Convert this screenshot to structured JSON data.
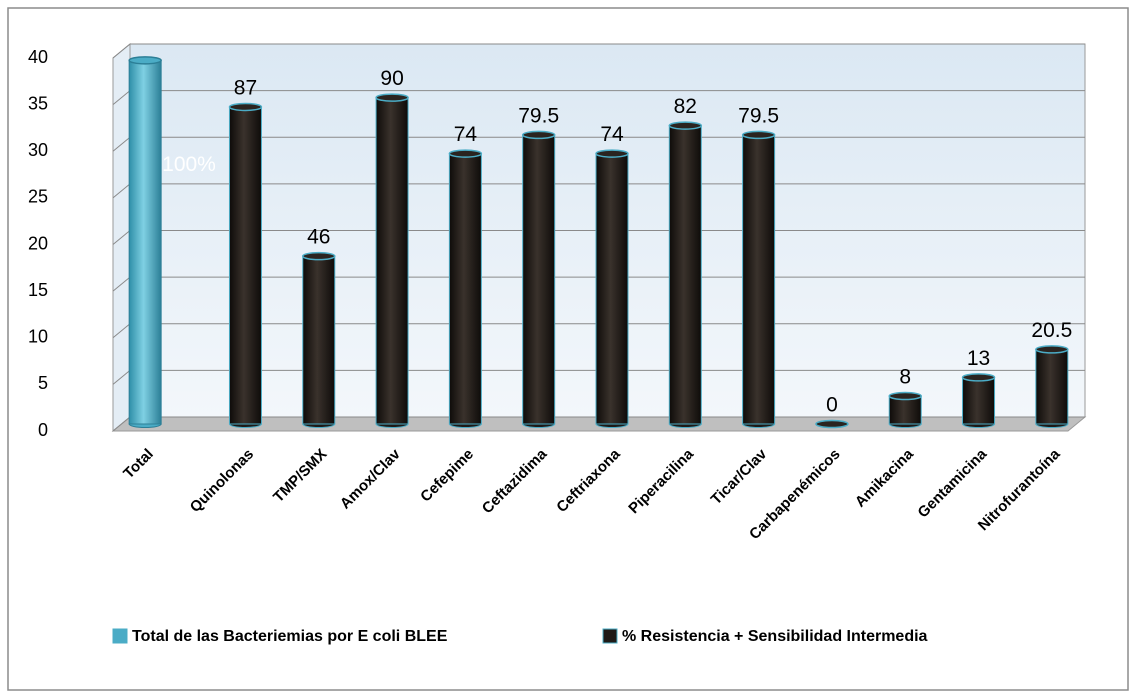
{
  "chart_data": {
    "type": "bar",
    "categories": [
      "Total",
      "Quinolonas",
      "TMP/SMX",
      "Amox/Clav",
      "Cefepime",
      "Ceftazidima",
      "Ceftriaxona",
      "Piperacilina",
      "Ticar/Clav",
      "Carbapenémicos",
      "Amikacina",
      "Gentamicina",
      "Nitrofurantoína"
    ],
    "series": [
      {
        "name": "Total de las Bacteriemias por E coli BLEE",
        "color": "#4bacc6",
        "values": [
          39,
          null,
          null,
          null,
          null,
          null,
          null,
          null,
          null,
          null,
          null,
          null,
          null
        ],
        "percent_labels": [
          "100%",
          null,
          null,
          null,
          null,
          null,
          null,
          null,
          null,
          null,
          null,
          null,
          null
        ]
      },
      {
        "name": "% Resistencia + Sensibilidad Intermedia",
        "color": "#1f1a17",
        "values": [
          null,
          34,
          18,
          35,
          29,
          31,
          29,
          32,
          31,
          0,
          3,
          5,
          8
        ],
        "percent_labels": [
          null,
          "87",
          "46",
          "90",
          "74",
          "79.5",
          "74",
          "82",
          "79.5",
          "0",
          "8",
          "13",
          "20.5"
        ]
      }
    ],
    "ylim": [
      0,
      40
    ],
    "yticks": [
      0,
      5,
      10,
      15,
      20,
      25,
      30,
      35,
      40
    ],
    "grid": true,
    "legend": "bottom"
  }
}
